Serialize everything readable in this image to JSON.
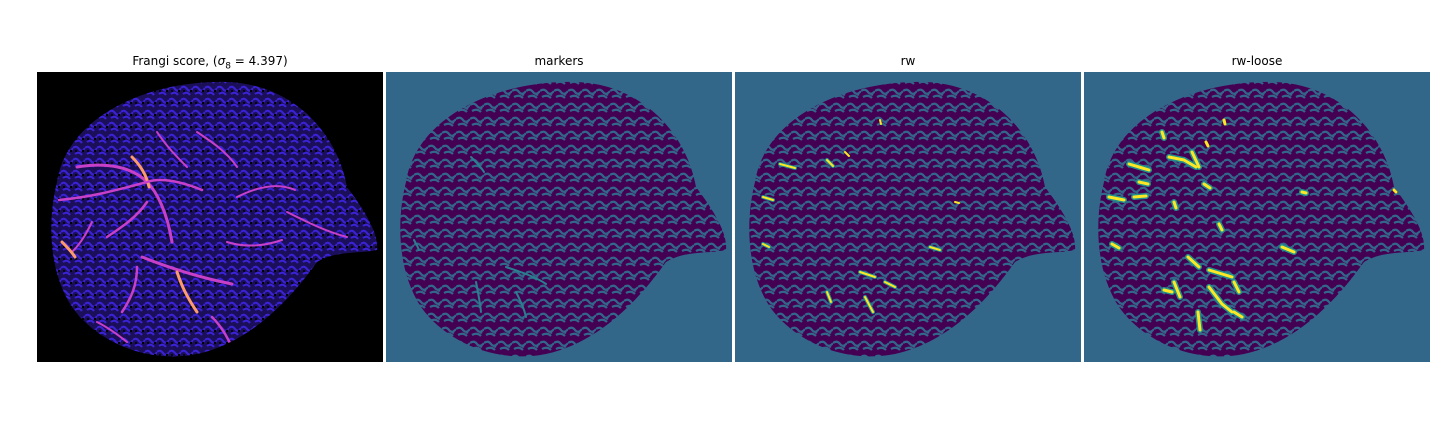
{
  "panels": [
    {
      "title_prefix": "Frangi score, (",
      "sigma_symbol": "σ",
      "sigma_sub": "8",
      "title_suffix": " = 4.397)",
      "colors": {
        "background": "#000000",
        "tissue": "#1c0f5a",
        "vessel": "#3a22d6",
        "ridge": "#c940c8",
        "peak": "#ff9a6a"
      }
    },
    {
      "title": "markers",
      "colors": {
        "background": "#33678a",
        "tissue": "#440154",
        "marker": "#2a7f8e"
      }
    },
    {
      "title": "rw",
      "colors": {
        "background": "#33678a",
        "tissue": "#440154",
        "label": "#fde725",
        "edge": "#21918c"
      }
    },
    {
      "title": "rw-loose",
      "colors": {
        "background": "#33678a",
        "tissue": "#440154",
        "label": "#fde725",
        "edge": "#21918c"
      }
    }
  ]
}
